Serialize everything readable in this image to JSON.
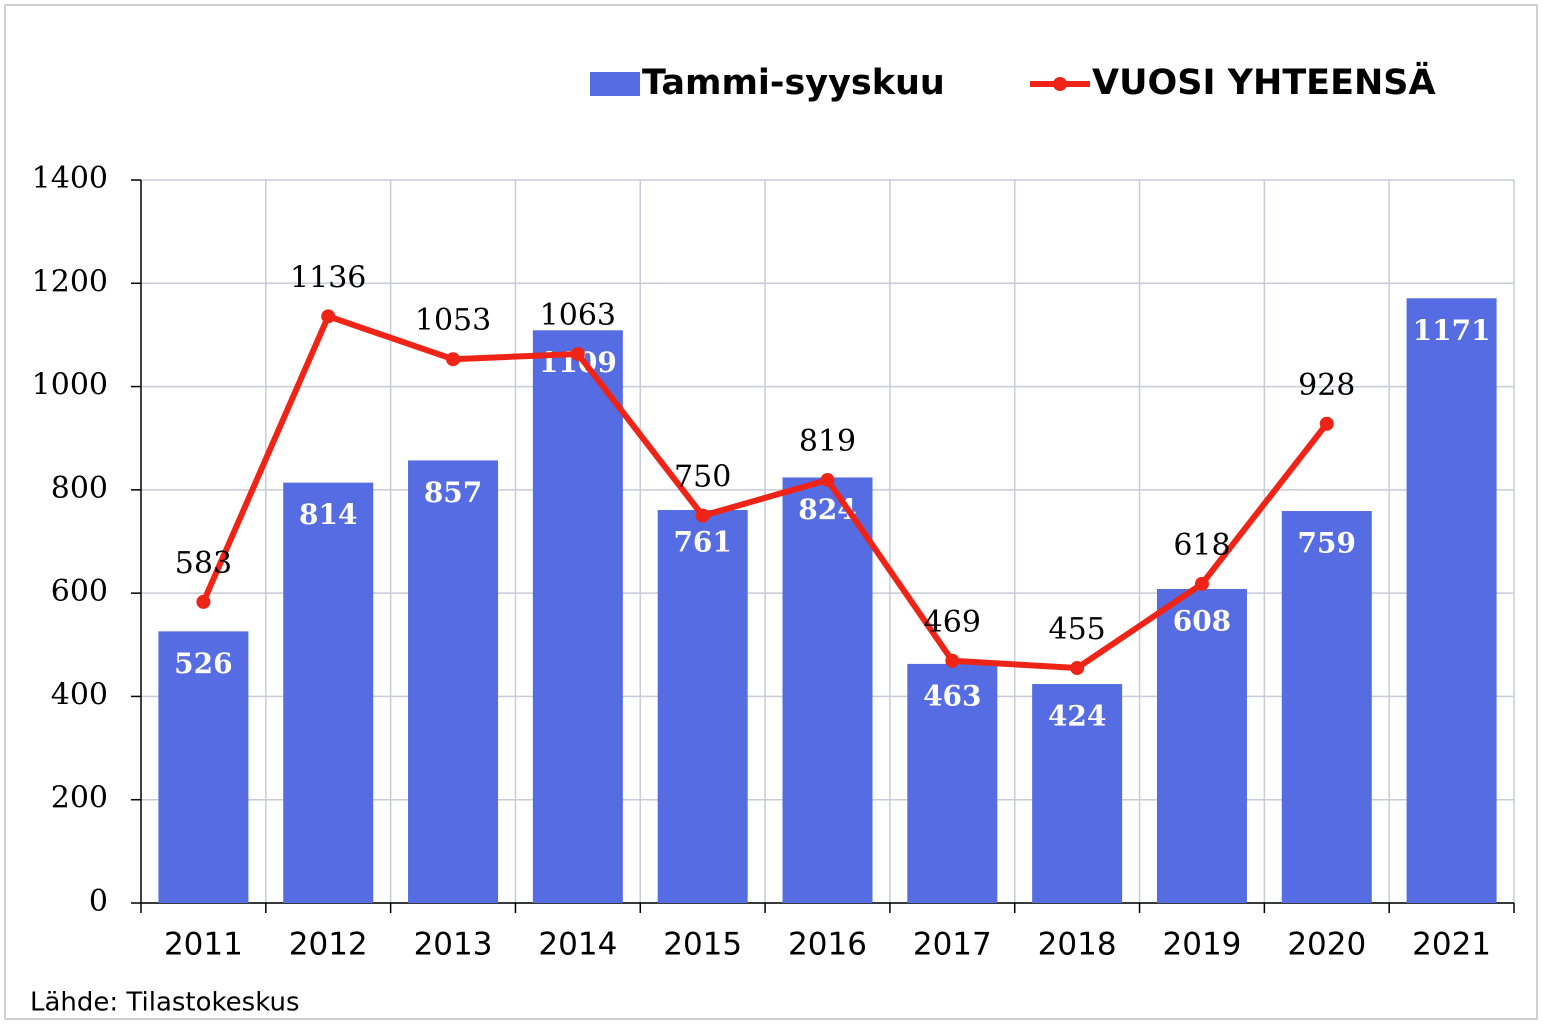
{
  "chart_data": {
    "type": "bar-line",
    "categories": [
      "2011",
      "2012",
      "2013",
      "2014",
      "2015",
      "2016",
      "2017",
      "2018",
      "2019",
      "2020",
      "2021"
    ],
    "series": [
      {
        "name": "Tammi-syyskuu",
        "type": "bar",
        "color": "#556ce3",
        "values": [
          526,
          814,
          857,
          1109,
          761,
          824,
          463,
          424,
          608,
          759,
          1171
        ]
      },
      {
        "name": "VUOSI YHTEENSÄ",
        "type": "line",
        "color": "#f02416",
        "values": [
          583,
          1136,
          1053,
          1063,
          750,
          819,
          469,
          455,
          618,
          928,
          null
        ]
      }
    ],
    "ylim": [
      0,
      1400
    ],
    "yticks": [
      0,
      200,
      400,
      600,
      800,
      1000,
      1200,
      1400
    ],
    "grid": true,
    "legend": "top",
    "source": "Lähde: Tilastokeskus"
  }
}
